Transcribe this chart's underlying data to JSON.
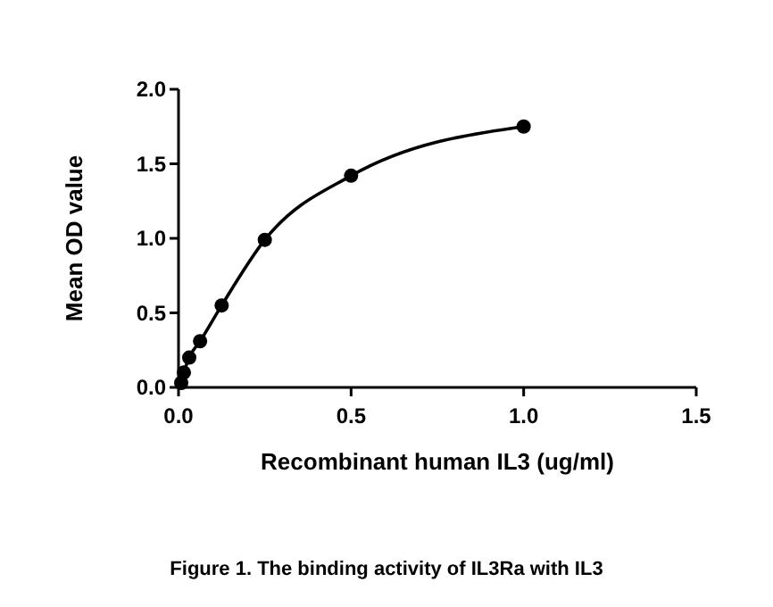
{
  "chart_data": {
    "type": "line",
    "title": "Figure 1. The binding activity of IL3Ra with IL3",
    "xlabel": "Recombinant human IL3 (ug/ml)",
    "ylabel": "Mean OD value",
    "x": [
      0.0078,
      0.0156,
      0.031,
      0.0625,
      0.125,
      0.25,
      0.5,
      1.0
    ],
    "series": [
      {
        "color": "#000000",
        "values": [
          0.03,
          0.1,
          0.2,
          0.31,
          0.55,
          0.99,
          1.42,
          1.75
        ]
      }
    ],
    "xlim": [
      0,
      1.5
    ],
    "xticks": [
      {
        "value": 0,
        "label": "0.0"
      },
      0.5,
      {
        "value": 1,
        "label": "1.0"
      },
      1.5
    ],
    "ylim": [
      0,
      2
    ],
    "yticks": [
      {
        "value": 0,
        "label": "0.0"
      },
      0.5,
      {
        "value": 1,
        "label": "1.0"
      },
      1.5,
      {
        "value": 2,
        "label": "2.0"
      }
    ],
    "marker": "circle",
    "line_style": "solid",
    "grid": false
  }
}
